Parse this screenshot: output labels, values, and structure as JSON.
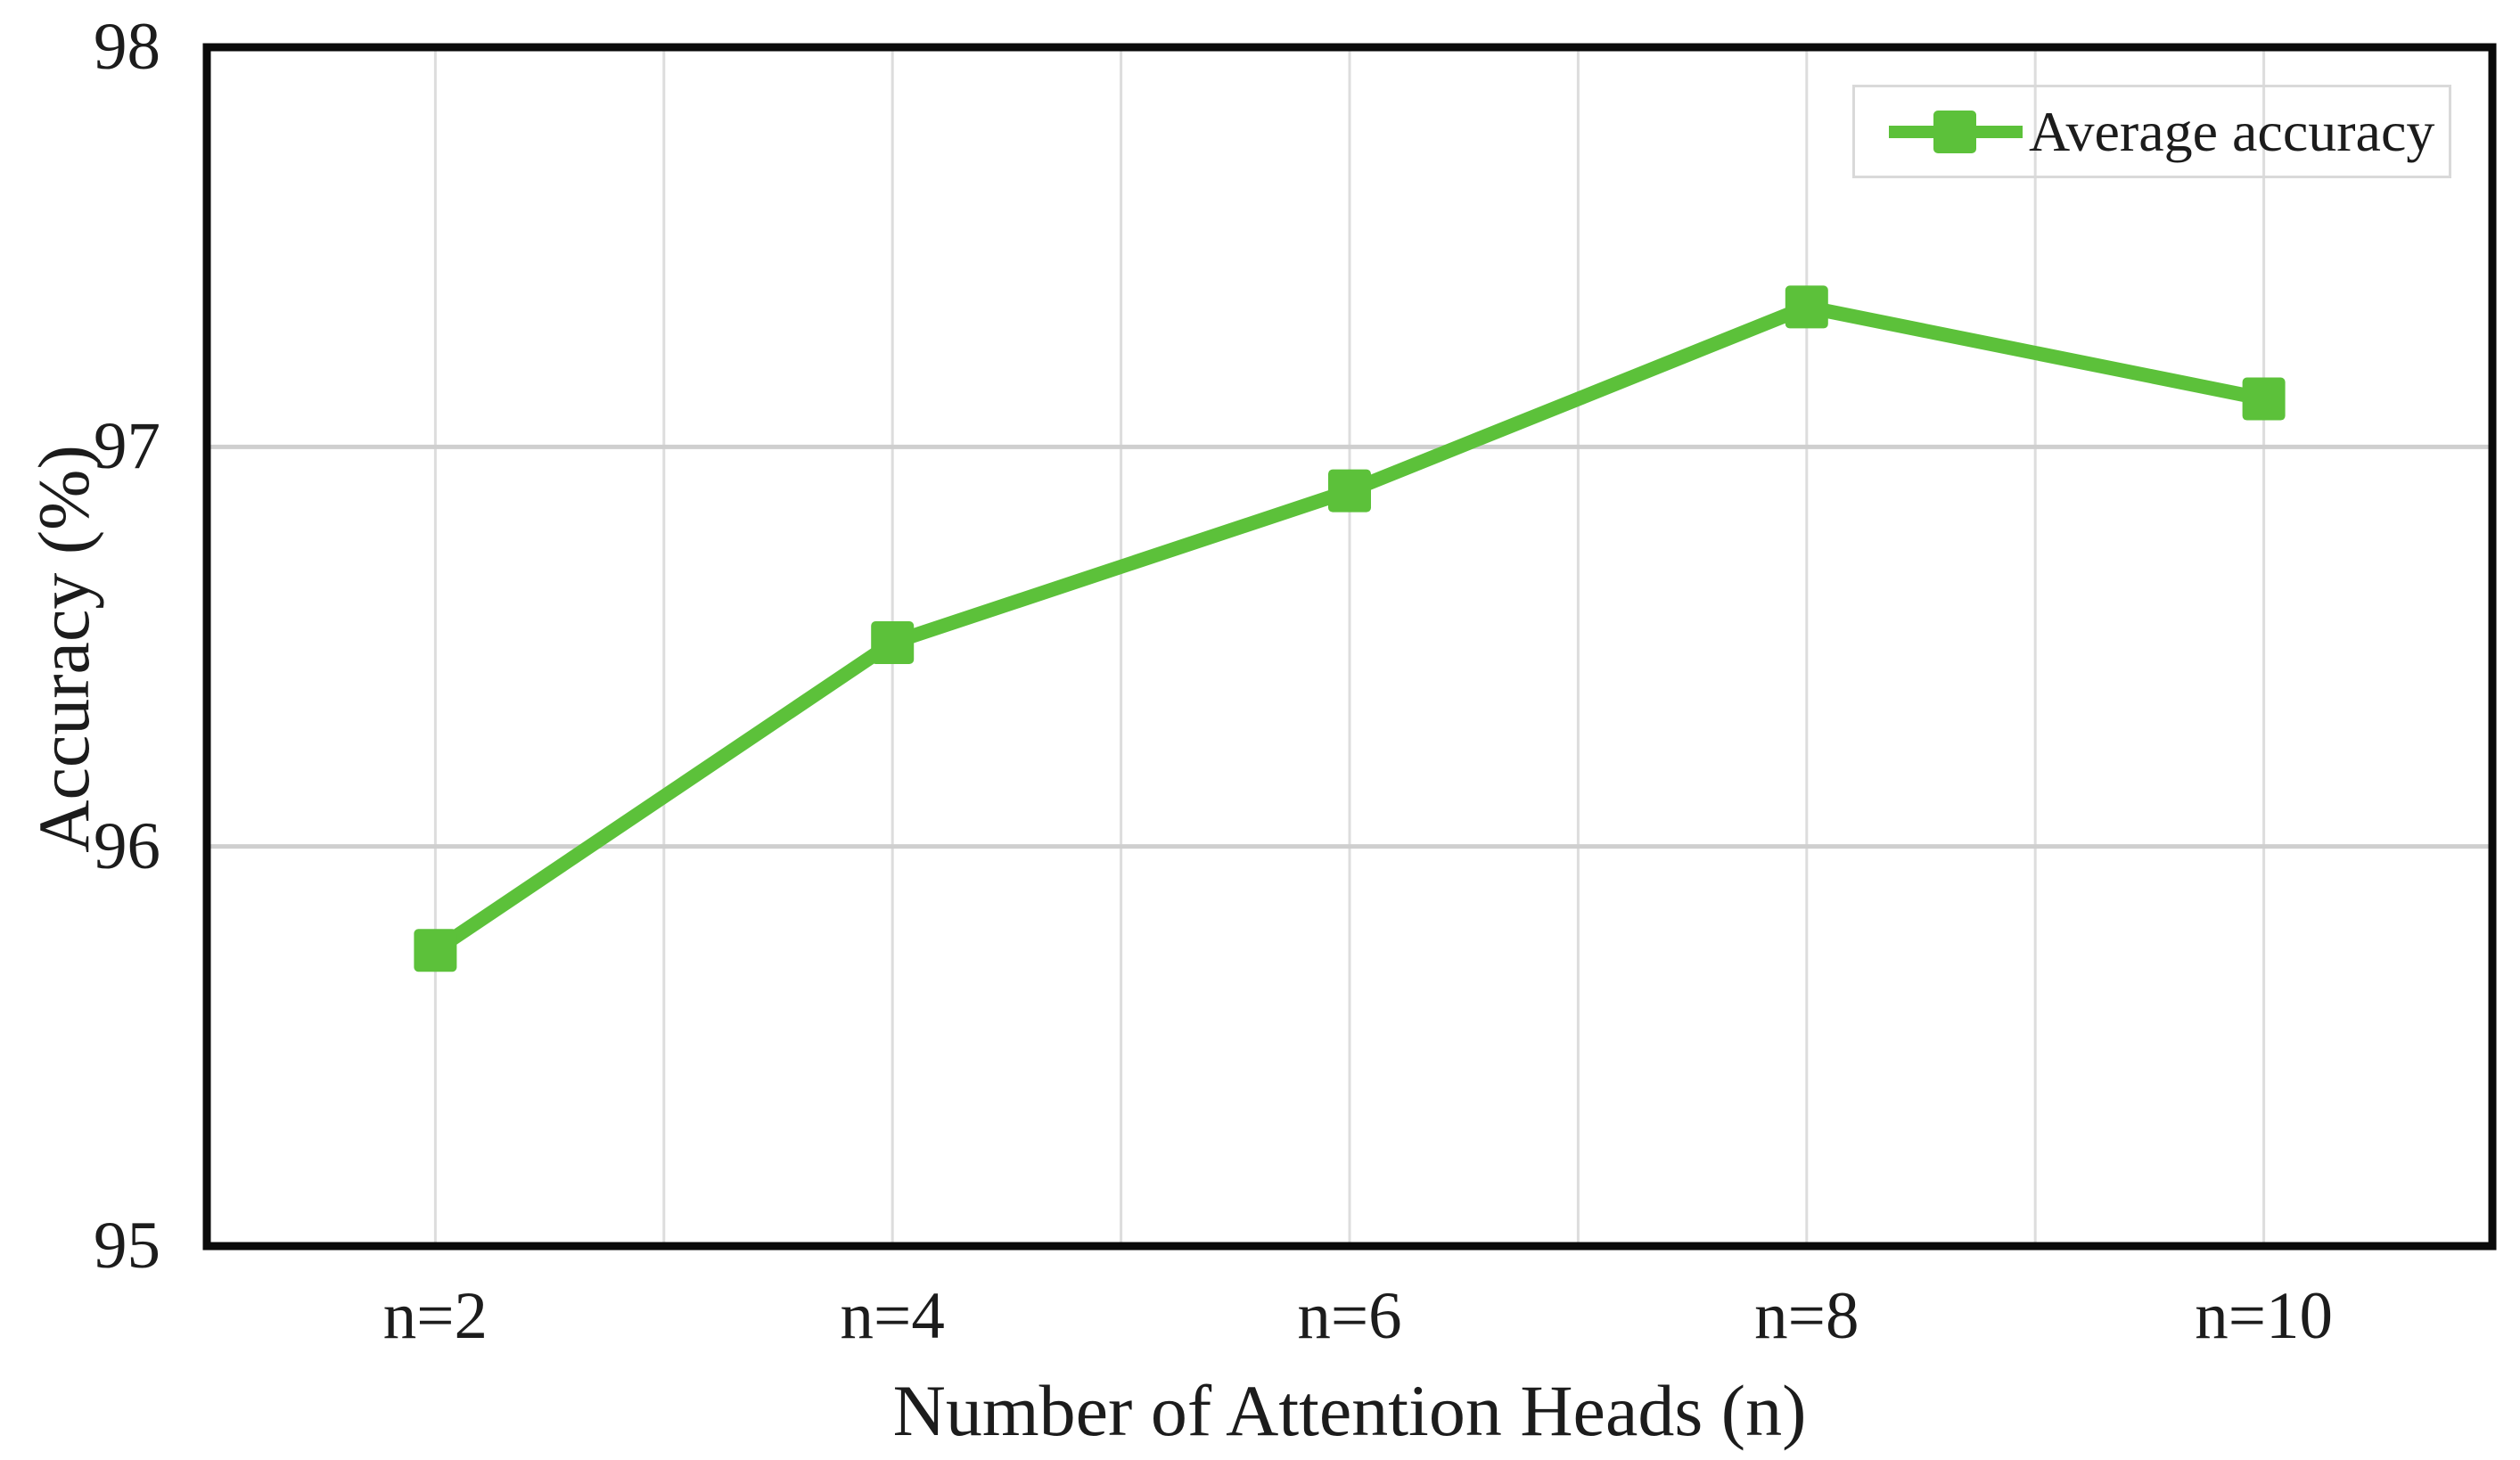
{
  "chart_data": {
    "type": "line",
    "title": "",
    "categories": [
      "n=2",
      "n=4",
      "n=6",
      "n=8",
      "n=10"
    ],
    "series": [
      {
        "name": "Average accuracy",
        "color": "#5cc13a",
        "marker": "square",
        "values": [
          95.74,
          96.51,
          96.89,
          97.35,
          97.12
        ]
      }
    ],
    "xlabel": "Number of Attention Heads (n)",
    "ylabel": "Accuracy (%)",
    "ylim": [
      95,
      98
    ],
    "yticks": [
      95,
      96,
      97,
      98
    ],
    "grid": {
      "horizontal": true,
      "vertical": true,
      "vertical_divisions": 10
    },
    "legend": {
      "position": "top-right",
      "entries": [
        "Average accuracy"
      ]
    }
  },
  "style": {
    "accent_color": "#5cc13a",
    "text_color": "#1c1c1c",
    "axis_border_color": "#0a0a0a",
    "h_gridline_color": "#cfcfcf",
    "v_gridline_color": "#dddddd",
    "legend_border_color": "#d9d9d9",
    "background": "#ffffff"
  }
}
